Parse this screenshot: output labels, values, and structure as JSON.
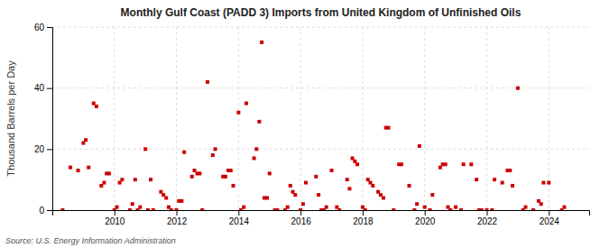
{
  "chart_data": {
    "type": "scatter",
    "title": "Monthly Gulf Coast (PADD 3) Imports from United Kingdom of Unfinished Oils",
    "ylabel": "Thousand Barrels per Day",
    "annotations": [
      "Source: U.S. Energy Information Administration"
    ],
    "color": "#cc0000",
    "marker": "square",
    "grid": true,
    "xlim": [
      2008.0,
      2025.3
    ],
    "xticks": [
      2010,
      2012,
      2014,
      2016,
      2018,
      2020,
      2022,
      2024
    ],
    "ylim": [
      0,
      60
    ],
    "yticks": [
      0,
      20,
      40,
      60
    ],
    "x": [
      2008.33,
      2008.58,
      2008.83,
      2009.0,
      2009.08,
      2009.17,
      2009.33,
      2009.42,
      2009.58,
      2009.67,
      2009.75,
      2009.83,
      2010.0,
      2010.08,
      2010.17,
      2010.25,
      2010.5,
      2010.58,
      2010.67,
      2010.75,
      2010.83,
      2011.0,
      2011.08,
      2011.17,
      2011.25,
      2011.5,
      2011.58,
      2011.67,
      2011.75,
      2011.83,
      2012.0,
      2012.08,
      2012.17,
      2012.25,
      2012.5,
      2012.58,
      2012.67,
      2012.75,
      2012.83,
      2013.0,
      2013.17,
      2013.25,
      2013.5,
      2013.58,
      2013.67,
      2013.75,
      2013.83,
      2014.0,
      2014.08,
      2014.17,
      2014.25,
      2014.5,
      2014.58,
      2014.67,
      2014.75,
      2014.83,
      2014.92,
      2015.0,
      2015.17,
      2015.25,
      2015.5,
      2015.58,
      2015.67,
      2015.75,
      2015.83,
      2016.0,
      2016.08,
      2016.17,
      2016.5,
      2016.58,
      2016.67,
      2016.75,
      2016.83,
      2017.0,
      2017.17,
      2017.25,
      2017.5,
      2017.58,
      2017.67,
      2017.75,
      2017.83,
      2018.0,
      2018.08,
      2018.17,
      2018.25,
      2018.33,
      2018.5,
      2018.58,
      2018.67,
      2018.75,
      2018.83,
      2019.0,
      2019.17,
      2019.25,
      2019.5,
      2019.67,
      2019.75,
      2019.83,
      2020.0,
      2020.17,
      2020.25,
      2020.5,
      2020.58,
      2020.67,
      2020.75,
      2020.83,
      2021.0,
      2021.17,
      2021.25,
      2021.5,
      2021.67,
      2021.75,
      2021.83,
      2022.0,
      2022.17,
      2022.25,
      2022.5,
      2022.67,
      2022.75,
      2022.83,
      2023.0,
      2023.17,
      2023.25,
      2023.5,
      2023.67,
      2023.75,
      2023.83,
      2024.0,
      2024.42,
      2024.5
    ],
    "values": [
      0,
      14,
      13,
      22,
      23,
      14,
      35,
      34,
      8,
      9,
      12,
      12,
      0,
      1,
      9,
      10,
      0,
      2,
      10,
      0,
      1,
      20,
      0,
      10,
      0,
      6,
      5,
      4,
      1,
      0,
      0,
      3,
      3,
      19,
      11,
      13,
      12,
      12,
      0,
      42,
      18,
      20,
      11,
      11,
      13,
      13,
      8,
      32,
      0,
      1,
      35,
      17,
      20,
      29,
      55,
      4,
      4,
      12,
      0,
      0,
      0,
      1,
      8,
      6,
      5,
      0,
      2,
      9,
      11,
      5,
      0,
      0,
      1,
      13,
      1,
      0,
      10,
      7,
      17,
      16,
      15,
      1,
      0,
      10,
      9,
      8,
      6,
      5,
      4,
      27,
      27,
      0,
      15,
      15,
      8,
      0,
      2,
      21,
      1,
      0,
      5,
      14,
      15,
      15,
      1,
      0,
      1,
      0,
      15,
      15,
      10,
      0,
      0,
      0,
      0,
      10,
      9,
      13,
      13,
      8,
      40,
      0,
      1,
      0,
      3,
      2,
      9,
      9,
      0,
      1
    ]
  }
}
